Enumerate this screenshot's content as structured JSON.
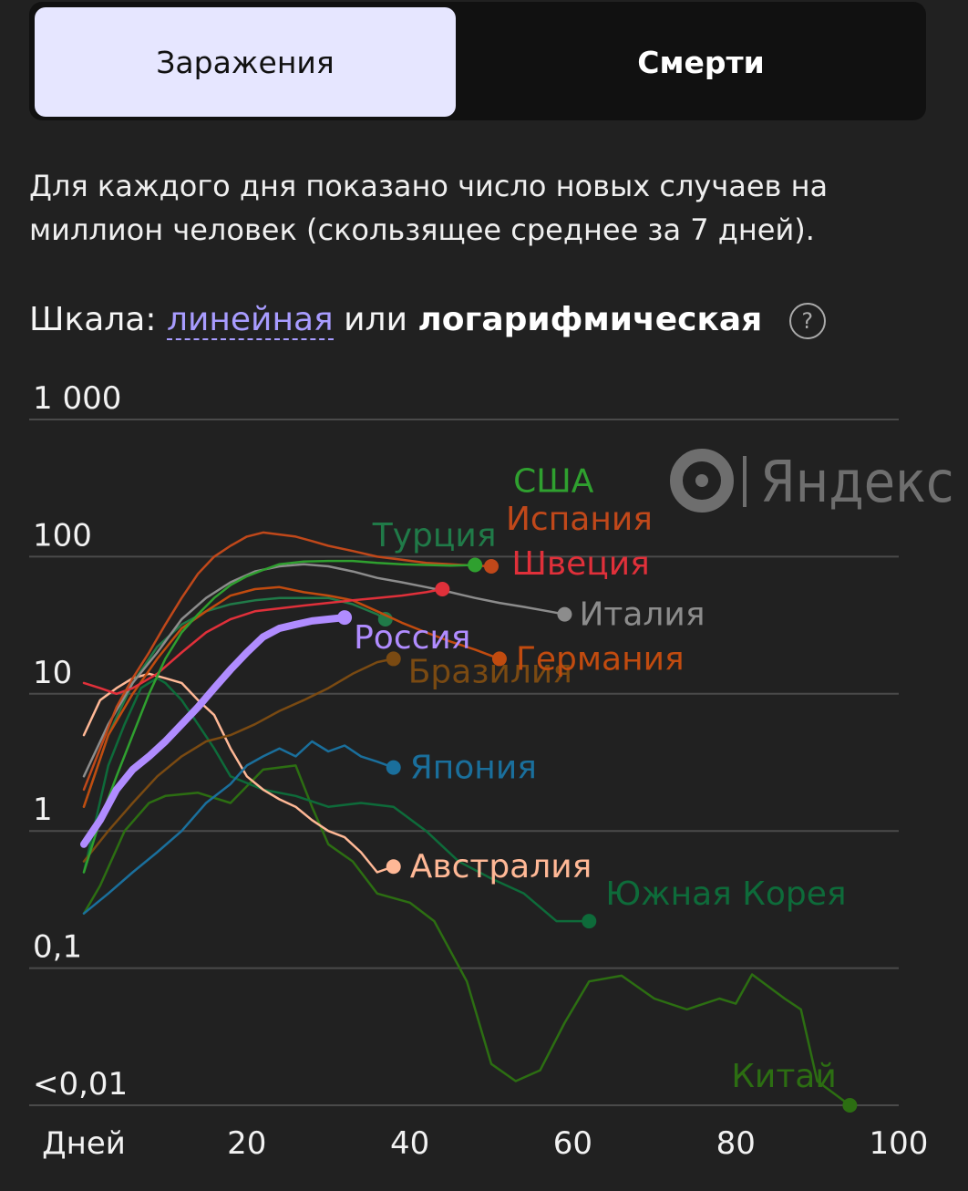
{
  "tabs": {
    "infections": "Заражения",
    "deaths": "Смерти"
  },
  "description": "Для каждого дня показано число новых случаев на миллион человек (скользящее среднее за 7 дней).",
  "scale": {
    "label": "Шкала:",
    "linear": "линейная",
    "or": "или",
    "log": "логарифмическая",
    "help": "?"
  },
  "logo": "Яндекс",
  "chart_data": {
    "type": "line",
    "x_scale": "linear",
    "y_scale": "log",
    "xlim": [
      0,
      100
    ],
    "ylim": [
      0.01,
      1000
    ],
    "x_ticks": [
      {
        "value": 0,
        "label": "Дней"
      },
      {
        "value": 20,
        "label": "20"
      },
      {
        "value": 40,
        "label": "40"
      },
      {
        "value": 60,
        "label": "60"
      },
      {
        "value": 80,
        "label": "80"
      },
      {
        "value": 100,
        "label": "100"
      }
    ],
    "y_ticks": [
      {
        "value": 1000,
        "label": "1 000"
      },
      {
        "value": 100,
        "label": "100"
      },
      {
        "value": 10,
        "label": "10"
      },
      {
        "value": 1,
        "label": "1"
      },
      {
        "value": 0.1,
        "label": "0,1"
      },
      {
        "value": 0.01,
        "label": "<0,01"
      }
    ],
    "grid": true,
    "series": [
      {
        "name": "Китай",
        "color": "#2c6e12",
        "x": [
          0,
          2,
          5,
          8,
          10,
          14,
          18,
          22,
          26,
          28,
          30,
          33,
          36,
          40,
          43,
          47,
          50,
          53,
          56,
          59,
          62,
          66,
          70,
          74,
          78,
          80,
          82,
          86,
          88,
          90,
          94
        ],
        "y": [
          0.25,
          0.4,
          1.0,
          1.6,
          1.8,
          1.9,
          1.6,
          2.8,
          3.0,
          1.5,
          0.8,
          0.6,
          0.35,
          0.3,
          0.22,
          0.08,
          0.02,
          0.015,
          0.018,
          0.04,
          0.08,
          0.088,
          0.06,
          0.05,
          0.06,
          0.055,
          0.09,
          0.06,
          0.05,
          0.015,
          0.01
        ],
        "label_dx": -130,
        "label_dy": -20
      },
      {
        "name": "Южная Корея",
        "color": "#0e6b3a",
        "x": [
          0,
          3,
          5,
          7,
          8,
          9,
          10,
          12,
          14,
          16,
          18,
          22,
          26,
          30,
          34,
          38,
          42,
          46,
          50,
          54,
          58,
          62
        ],
        "y": [
          0.5,
          3.0,
          6.0,
          11,
          12,
          13,
          12,
          9,
          6,
          4,
          2.5,
          2.0,
          1.8,
          1.5,
          1.6,
          1.5,
          1.0,
          0.6,
          0.45,
          0.35,
          0.22,
          0.22
        ],
        "label_dx": 18,
        "label_dy": -18
      },
      {
        "name": "Австралия",
        "color": "#ffb896",
        "x": [
          0,
          2,
          4,
          6,
          8,
          10,
          12,
          14,
          16,
          18,
          20,
          22,
          24,
          26,
          28,
          30,
          32,
          34,
          36,
          38
        ],
        "y": [
          5.0,
          9.0,
          11,
          13,
          14,
          13,
          12,
          9,
          7,
          4,
          2.5,
          2.0,
          1.7,
          1.5,
          1.2,
          1.0,
          0.9,
          0.7,
          0.5,
          0.55
        ],
        "label_dx": 18,
        "label_dy": 12
      },
      {
        "name": "Япония",
        "color": "#1a6f9c",
        "x": [
          0,
          3,
          6,
          9,
          12,
          15,
          18,
          20,
          22,
          24,
          26,
          28,
          30,
          32,
          34,
          36,
          38
        ],
        "y": [
          0.25,
          0.35,
          0.5,
          0.7,
          1.0,
          1.6,
          2.2,
          3.0,
          3.5,
          4.0,
          3.5,
          4.5,
          3.8,
          4.2,
          3.5,
          3.2,
          2.9
        ],
        "label_dx": 18,
        "label_dy": 12
      },
      {
        "name": "Бразилия",
        "color": "#7a4a12",
        "x": [
          0,
          3,
          6,
          9,
          12,
          15,
          18,
          21,
          24,
          27,
          30,
          33,
          36,
          38
        ],
        "y": [
          0.6,
          1.0,
          1.6,
          2.5,
          3.5,
          4.5,
          5.0,
          6.0,
          7.5,
          9.0,
          11,
          14,
          17,
          18
        ],
        "label_dx": 16,
        "label_dy": 26
      },
      {
        "name": "Турция",
        "color": "#207a48",
        "x": [
          0,
          3,
          6,
          9,
          12,
          15,
          18,
          21,
          24,
          27,
          30,
          33,
          36,
          37
        ],
        "y": [
          1.5,
          5.0,
          12,
          22,
          32,
          40,
          45,
          48,
          50,
          50,
          50,
          45,
          38,
          35
        ],
        "label_dx": -14,
        "label_dy": -80
      },
      {
        "name": "Германия",
        "color": "#c14b0f",
        "x": [
          0,
          3,
          6,
          9,
          12,
          15,
          18,
          21,
          24,
          27,
          30,
          33,
          36,
          39,
          42,
          45,
          48,
          51
        ],
        "y": [
          1.5,
          5.0,
          10,
          18,
          30,
          40,
          52,
          58,
          60,
          55,
          52,
          48,
          40,
          33,
          28,
          24,
          21,
          18
        ],
        "label_dx": 18,
        "label_dy": 12
      },
      {
        "name": "Италия",
        "color": "#8c8c8c",
        "x": [
          0,
          3,
          6,
          9,
          12,
          15,
          18,
          21,
          24,
          27,
          30,
          33,
          36,
          39,
          42,
          45,
          48,
          51,
          54,
          57,
          59
        ],
        "y": [
          2.5,
          6.0,
          12,
          20,
          35,
          50,
          65,
          78,
          85,
          88,
          85,
          78,
          70,
          65,
          60,
          55,
          50,
          46,
          43,
          40,
          38
        ],
        "label_dx": 16,
        "label_dy": 12
      },
      {
        "name": "Швеция",
        "color": "#e0303a",
        "x": [
          0,
          2,
          4,
          6,
          9,
          12,
          15,
          18,
          21,
          24,
          27,
          30,
          33,
          36,
          39,
          42,
          44
        ],
        "y": [
          12,
          11,
          10,
          11,
          14,
          20,
          28,
          35,
          40,
          42,
          44,
          46,
          48,
          50,
          52,
          55,
          58
        ],
        "label_dx": 76,
        "label_dy": -16
      },
      {
        "name": "Испания",
        "color": "#c0481a",
        "x": [
          0,
          2,
          4,
          6,
          8,
          10,
          12,
          14,
          16,
          18,
          20,
          22,
          24,
          26,
          28,
          30,
          33,
          36,
          39,
          42,
          45,
          48,
          50
        ],
        "y": [
          2.0,
          4.0,
          8.0,
          13,
          20,
          32,
          50,
          75,
          100,
          120,
          140,
          150,
          145,
          140,
          130,
          120,
          110,
          100,
          95,
          90,
          88,
          86,
          85
        ],
        "label_dx": 16,
        "label_dy": -40
      },
      {
        "name": "США",
        "color": "#2fa02f",
        "x": [
          0,
          2,
          4,
          6,
          8,
          10,
          12,
          14,
          16,
          18,
          20,
          22,
          24,
          27,
          30,
          33,
          36,
          39,
          42,
          45,
          48
        ],
        "y": [
          0.5,
          1.2,
          2.5,
          5.0,
          10,
          18,
          28,
          38,
          50,
          62,
          72,
          80,
          88,
          92,
          93,
          93,
          90,
          88,
          87,
          86,
          87
        ],
        "label_dx": 42,
        "label_dy": -80
      },
      {
        "name": "Россия",
        "color": "#b08cff",
        "x": [
          0,
          2,
          4,
          6,
          8,
          10,
          12,
          14,
          16,
          18,
          20,
          22,
          24,
          26,
          28,
          30,
          32
        ],
        "y": [
          0.8,
          1.2,
          2.0,
          2.8,
          3.5,
          4.5,
          6.0,
          8.0,
          11,
          15,
          20,
          26,
          30,
          32,
          34,
          35,
          36
        ],
        "label_dx": 10,
        "label_dy": 34
      }
    ]
  }
}
